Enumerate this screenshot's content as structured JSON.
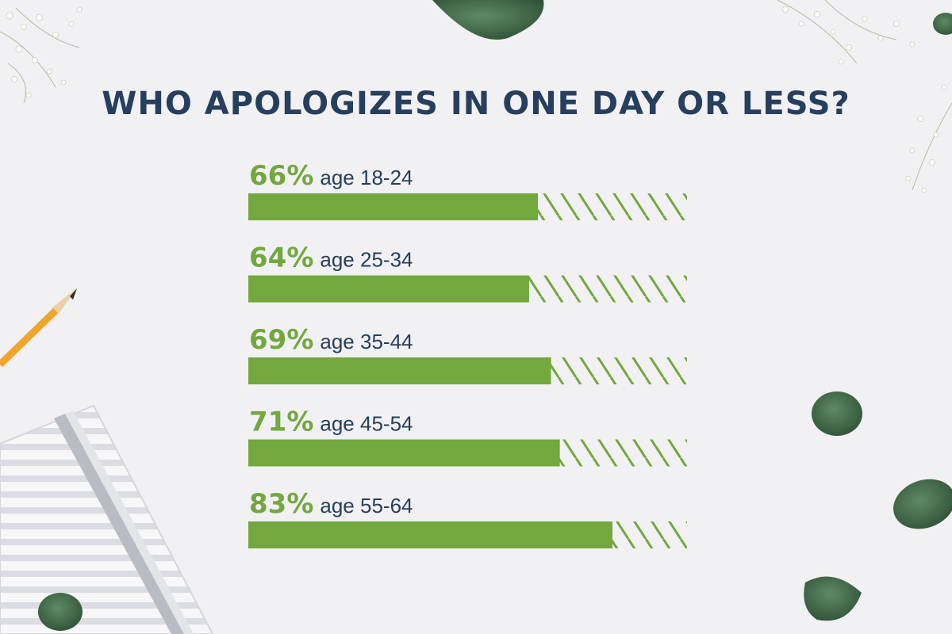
{
  "chart_data": {
    "type": "bar",
    "orientation": "horizontal",
    "title": "WHO APOLOGIZES IN ONE DAY OR LESS?",
    "categories": [
      "age 18-24",
      "age 25-34",
      "age 35-44",
      "age 45-54",
      "age 55-64"
    ],
    "values": [
      66,
      64,
      69,
      71,
      83
    ],
    "value_labels": [
      "66%",
      "64%",
      "69%",
      "71%",
      "83%"
    ],
    "unit": "%",
    "xlim": [
      0,
      100
    ],
    "grid": false,
    "legend": "none",
    "bar_color": "#72a83e",
    "remainder_style": "hatched"
  },
  "colors": {
    "background": "#f1f1f3",
    "title": "#263f5e",
    "accent": "#72a83e",
    "label": "#263f5e"
  },
  "decorations": [
    "baby-breath-flowers",
    "eucalyptus-leaf",
    "pencil",
    "striped-notebook"
  ]
}
